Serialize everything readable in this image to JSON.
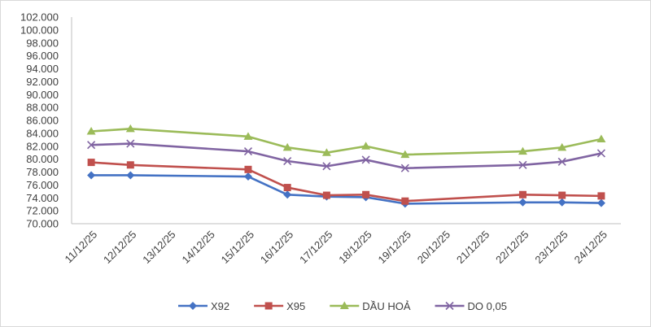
{
  "chart_data": {
    "type": "line",
    "title": "",
    "xlabel": "",
    "ylabel": "",
    "ylim": [
      70000,
      102000
    ],
    "ytick_step": 2000,
    "ytick_labels": [
      "70.000",
      "72.000",
      "74.000",
      "76.000",
      "78.000",
      "80.000",
      "82.000",
      "84.000",
      "86.000",
      "88.000",
      "90.000",
      "92.000",
      "94.000",
      "96.000",
      "98.000",
      "100.000",
      "102.000"
    ],
    "grid": false,
    "legend_position": "bottom",
    "categories": [
      "11/12/25",
      "12/12/25",
      "13/12/25",
      "14/12/25",
      "15/12/25",
      "16/12/25",
      "17/12/25",
      "18/12/25",
      "19/12/25",
      "20/12/25",
      "21/12/25",
      "22/12/25",
      "23/12/25",
      "24/12/25"
    ],
    "series": [
      {
        "name": "X92",
        "color": "#4472c4",
        "marker": "diamond",
        "values": [
          77500,
          77500,
          null,
          null,
          77300,
          74500,
          74200,
          74100,
          73100,
          null,
          null,
          73300,
          73300,
          73200
        ]
      },
      {
        "name": "X95",
        "color": "#c0504d",
        "marker": "square",
        "values": [
          79500,
          79100,
          null,
          null,
          78400,
          75600,
          74400,
          74500,
          73500,
          null,
          null,
          74500,
          74400,
          74300
        ]
      },
      {
        "name": "DẦU HOẢ",
        "color": "#9bbb59",
        "marker": "triangle",
        "values": [
          84300,
          84700,
          null,
          null,
          83500,
          81800,
          81000,
          82000,
          80700,
          null,
          null,
          81200,
          81800,
          83100
        ]
      },
      {
        "name": "DO 0,05",
        "color": "#8064a2",
        "marker": "x",
        "values": [
          82200,
          82400,
          null,
          null,
          81200,
          79700,
          78900,
          79900,
          78600,
          null,
          null,
          79100,
          79600,
          80900
        ]
      }
    ]
  }
}
